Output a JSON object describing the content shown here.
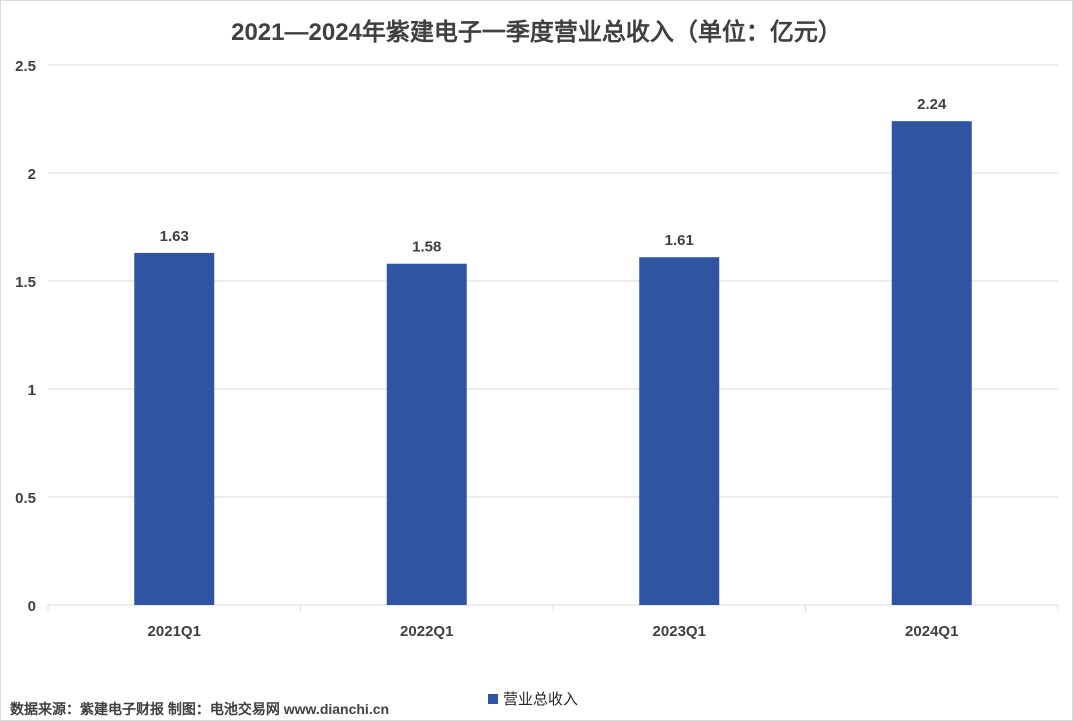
{
  "chart_data": {
    "type": "bar",
    "title": "2021—2024年紫建电子一季度营业总收入（单位：亿元）",
    "categories": [
      "2021Q1",
      "2022Q1",
      "2023Q1",
      "2024Q1"
    ],
    "series": [
      {
        "name": "营业总收入",
        "values": [
          1.63,
          1.58,
          1.61,
          2.24
        ],
        "color": "#2e54a2"
      }
    ],
    "data_labels": [
      "1.63",
      "1.58",
      "1.61",
      "2.24"
    ],
    "y_ticks": [
      "0",
      "0.5",
      "1",
      "1.5",
      "2",
      "2.5"
    ],
    "ylim": [
      0,
      2.5
    ],
    "grid": true,
    "legend_position": "bottom"
  },
  "source_note": "数据来源：紫建电子财报  制图：电池交易网 www.dianchi.cn",
  "colors": {
    "bar": "#2e54a2",
    "grid": "#d9d9d9",
    "text": "#404040"
  }
}
